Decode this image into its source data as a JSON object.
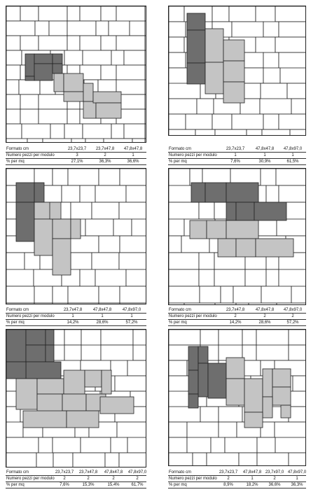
{
  "colors": {
    "dark": "#6e6e6e",
    "light": "#c4c4c4",
    "line": "#222222",
    "white": "#ffffff"
  },
  "row_labels": [
    "Formato cm",
    "Numero pezzi per modulo",
    "% per mq"
  ],
  "panels": [
    {
      "id": "p1",
      "formats": [
        "23,7x23,7",
        "23,7x47,8",
        "47,8x47,8"
      ],
      "pieces": [
        "3",
        "2",
        "1"
      ],
      "percent": [
        "27,1%",
        "36,3%",
        "36,6%"
      ]
    },
    {
      "id": "p2",
      "formats": [
        "23,7x23,7",
        "47,8x47,8",
        "47,8x97,0"
      ],
      "pieces": [
        "1",
        "1",
        "1"
      ],
      "percent": [
        "7,6%",
        "30,9%",
        "61,5%"
      ]
    },
    {
      "id": "p3",
      "formats": [
        "23,7x47,8",
        "47,8x47,8",
        "47,8x97,0"
      ],
      "pieces": [
        "1",
        "1",
        "1"
      ],
      "percent": [
        "14,2%",
        "28,6%",
        "57,2%"
      ]
    },
    {
      "id": "p4",
      "formats": [
        "23,7x47,8",
        "47,8x47,8",
        "47,8x97,0"
      ],
      "pieces": [
        "2",
        "2",
        "2"
      ],
      "percent": [
        "14,2%",
        "28,6%",
        "57,2%"
      ]
    },
    {
      "id": "p5",
      "formats": [
        "23,7x23,7",
        "23,7x47,8",
        "47,8x47,8",
        "47,8x97,0"
      ],
      "pieces": [
        "2",
        "2",
        "2",
        "2"
      ],
      "percent": [
        "7,6%",
        "15,3%",
        "15,4%",
        "61,7%"
      ]
    },
    {
      "id": "p6",
      "formats": [
        "23,7x23,7",
        "47,8x47,8",
        "23,7x97,0",
        "47,8x97,0"
      ],
      "pieces": [
        "2",
        "1",
        "2",
        "1"
      ],
      "percent": [
        "8,9%",
        "18,2%",
        "36,6%",
        "36,3%"
      ]
    }
  ]
}
